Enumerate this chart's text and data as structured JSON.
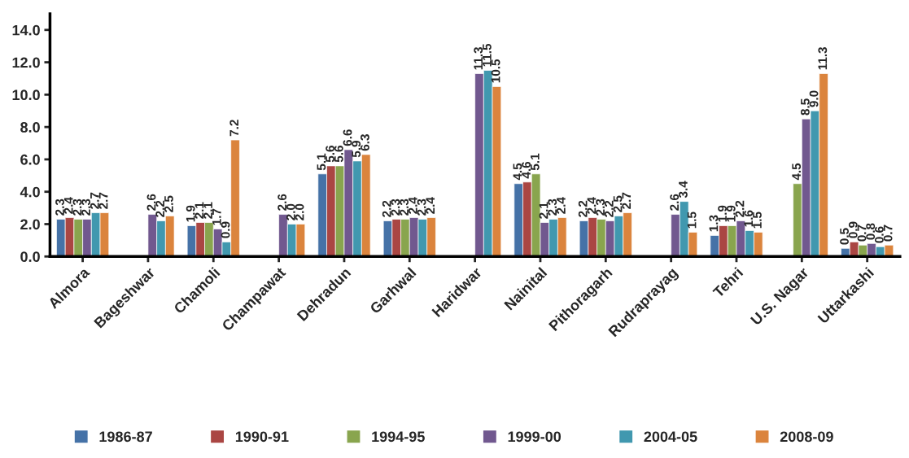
{
  "chart_data": {
    "type": "bar",
    "categories": [
      "Almora",
      "Bageshwar",
      "Chamoli",
      "Champawat",
      "Dehradun",
      "Garhwal",
      "Haridwar",
      "Nainital",
      "Pithoragarh",
      "Rudraprayag",
      "Tehri",
      "U.S. Nagar",
      "Uttarkashi"
    ],
    "series": [
      {
        "name": "1986-87",
        "color": "#4572a7",
        "values": [
          2.3,
          null,
          1.9,
          null,
          5.1,
          2.2,
          null,
          4.5,
          2.2,
          null,
          1.3,
          null,
          0.5
        ],
        "value_labels": [
          "2.3",
          null,
          "1.9",
          null,
          "5.1",
          "2.2",
          null,
          "4.5",
          "2.2",
          null,
          "1.3",
          null,
          "0.5"
        ]
      },
      {
        "name": "1990-91",
        "color": "#aa4643",
        "values": [
          2.4,
          null,
          2.1,
          null,
          5.6,
          2.3,
          null,
          4.6,
          2.4,
          null,
          1.9,
          null,
          0.9
        ],
        "value_labels": [
          "2.4",
          null,
          "2.1",
          null,
          "5.6",
          "2.3",
          null,
          "4.6",
          "2.4",
          null,
          "1.9",
          null,
          "0.9"
        ]
      },
      {
        "name": "1994-95",
        "color": "#89a54e",
        "values": [
          2.3,
          null,
          2.1,
          null,
          5.6,
          2.3,
          null,
          5.1,
          2.3,
          null,
          1.9,
          4.5,
          0.7
        ],
        "value_labels": [
          "2.3",
          null,
          "2.1",
          null,
          "5.6",
          "2.3",
          null,
          "5.1",
          "2.3",
          null,
          "1.9",
          "4.5",
          "0.7"
        ]
      },
      {
        "name": "1999-00",
        "color": "#71588f",
        "values": [
          2.3,
          2.6,
          1.7,
          2.6,
          6.6,
          2.4,
          11.3,
          2.1,
          2.2,
          2.6,
          2.2,
          8.5,
          0.8
        ],
        "value_labels": [
          "2.3",
          "2.6",
          "1.7",
          "2.6",
          "6.6",
          "2.4",
          "11.3",
          "2.1",
          "2.2",
          "2.6",
          "2.2",
          "8.5",
          "0.8"
        ]
      },
      {
        "name": "2004-05",
        "color": "#4198af",
        "values": [
          2.7,
          2.2,
          0.9,
          2.0,
          5.9,
          2.3,
          11.5,
          2.3,
          2.5,
          3.4,
          1.6,
          9.0,
          0.6
        ],
        "value_labels": [
          "2.7",
          "2.2",
          "0.9",
          "2.0",
          "5.9",
          "2.3",
          "11.5",
          "2.3",
          "2.5",
          "3.4",
          "1.6",
          "9.0",
          "0.6"
        ]
      },
      {
        "name": "2008-09",
        "color": "#db843d",
        "values": [
          2.7,
          2.5,
          7.2,
          2.0,
          6.3,
          2.4,
          10.5,
          2.4,
          2.7,
          1.5,
          1.5,
          11.3,
          0.7
        ],
        "value_labels": [
          "2.7",
          "2.5",
          "7.2",
          "2.0",
          "6.3",
          "2.4",
          "10.5",
          "2.4",
          "2.7",
          "1.5",
          "1.5",
          "11.3",
          "0.7"
        ]
      }
    ],
    "ylim": [
      0,
      15
    ],
    "yticks": [
      {
        "value": 0,
        "label": "0.0"
      },
      {
        "value": 2,
        "label": "2.0"
      },
      {
        "value": 4,
        "label": "4.0"
      },
      {
        "value": 6,
        "label": "6.0"
      },
      {
        "value": 8,
        "label": "8.0"
      },
      {
        "value": 10,
        "label": "10.0"
      },
      {
        "value": 12,
        "label": "12.0"
      },
      {
        "value": 14,
        "label": "14.0"
      }
    ],
    "grid": false,
    "legend": "bottom"
  }
}
